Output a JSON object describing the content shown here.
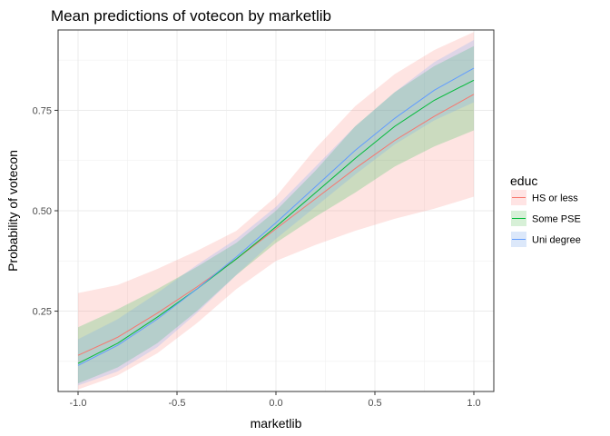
{
  "chart_data": {
    "type": "line",
    "title": "Mean predictions of votecon by marketlib",
    "xlabel": "marketlib",
    "ylabel": "Probability of votecon",
    "xlim": [
      -1.0,
      1.0
    ],
    "ylim": [
      0.05,
      0.95
    ],
    "x_ticks": [
      {
        "value": -1.0,
        "label": "-1.0"
      },
      {
        "value": -0.5,
        "label": "-0.5"
      },
      {
        "value": 0.0,
        "label": "0.0"
      },
      {
        "value": 0.5,
        "label": "0.5"
      },
      {
        "value": 1.0,
        "label": "1.0"
      }
    ],
    "y_ticks": [
      {
        "value": 0.25,
        "label": "0.25"
      },
      {
        "value": 0.5,
        "label": "0.50"
      },
      {
        "value": 0.75,
        "label": "0.75"
      }
    ],
    "grid": true,
    "legend": {
      "title": "educ",
      "position": "right"
    },
    "x": [
      -1.0,
      -0.8,
      -0.6,
      -0.4,
      -0.2,
      0.0,
      0.2,
      0.4,
      0.6,
      0.8,
      1.0
    ],
    "series": [
      {
        "name": "HS or less",
        "color": "#F8766D",
        "fill": "#FFE4E4",
        "values": [
          0.14,
          0.185,
          0.245,
          0.31,
          0.38,
          0.455,
          0.53,
          0.605,
          0.675,
          0.735,
          0.79
        ],
        "lower": [
          0.055,
          0.09,
          0.145,
          0.22,
          0.305,
          0.375,
          0.415,
          0.45,
          0.48,
          0.505,
          0.535
        ],
        "upper": [
          0.295,
          0.315,
          0.355,
          0.4,
          0.45,
          0.535,
          0.655,
          0.76,
          0.84,
          0.9,
          0.945
        ]
      },
      {
        "name": "Some PSE",
        "color": "#00BA38",
        "fill": "#D7F0D7",
        "values": [
          0.12,
          0.17,
          0.235,
          0.305,
          0.38,
          0.46,
          0.545,
          0.63,
          0.71,
          0.775,
          0.825
        ],
        "lower": [
          0.07,
          0.11,
          0.17,
          0.25,
          0.34,
          0.42,
          0.485,
          0.545,
          0.61,
          0.66,
          0.7
        ],
        "upper": [
          0.21,
          0.255,
          0.305,
          0.36,
          0.42,
          0.5,
          0.6,
          0.71,
          0.795,
          0.86,
          0.91
        ]
      },
      {
        "name": "Uni degree",
        "color": "#619CFF",
        "fill": "#DCE8FA",
        "values": [
          0.115,
          0.165,
          0.23,
          0.305,
          0.385,
          0.47,
          0.56,
          0.65,
          0.73,
          0.8,
          0.855
        ],
        "lower": [
          0.065,
          0.1,
          0.16,
          0.245,
          0.34,
          0.43,
          0.51,
          0.59,
          0.665,
          0.725,
          0.77
        ],
        "upper": [
          0.18,
          0.23,
          0.295,
          0.365,
          0.43,
          0.51,
          0.61,
          0.71,
          0.795,
          0.87,
          0.925
        ]
      }
    ]
  }
}
